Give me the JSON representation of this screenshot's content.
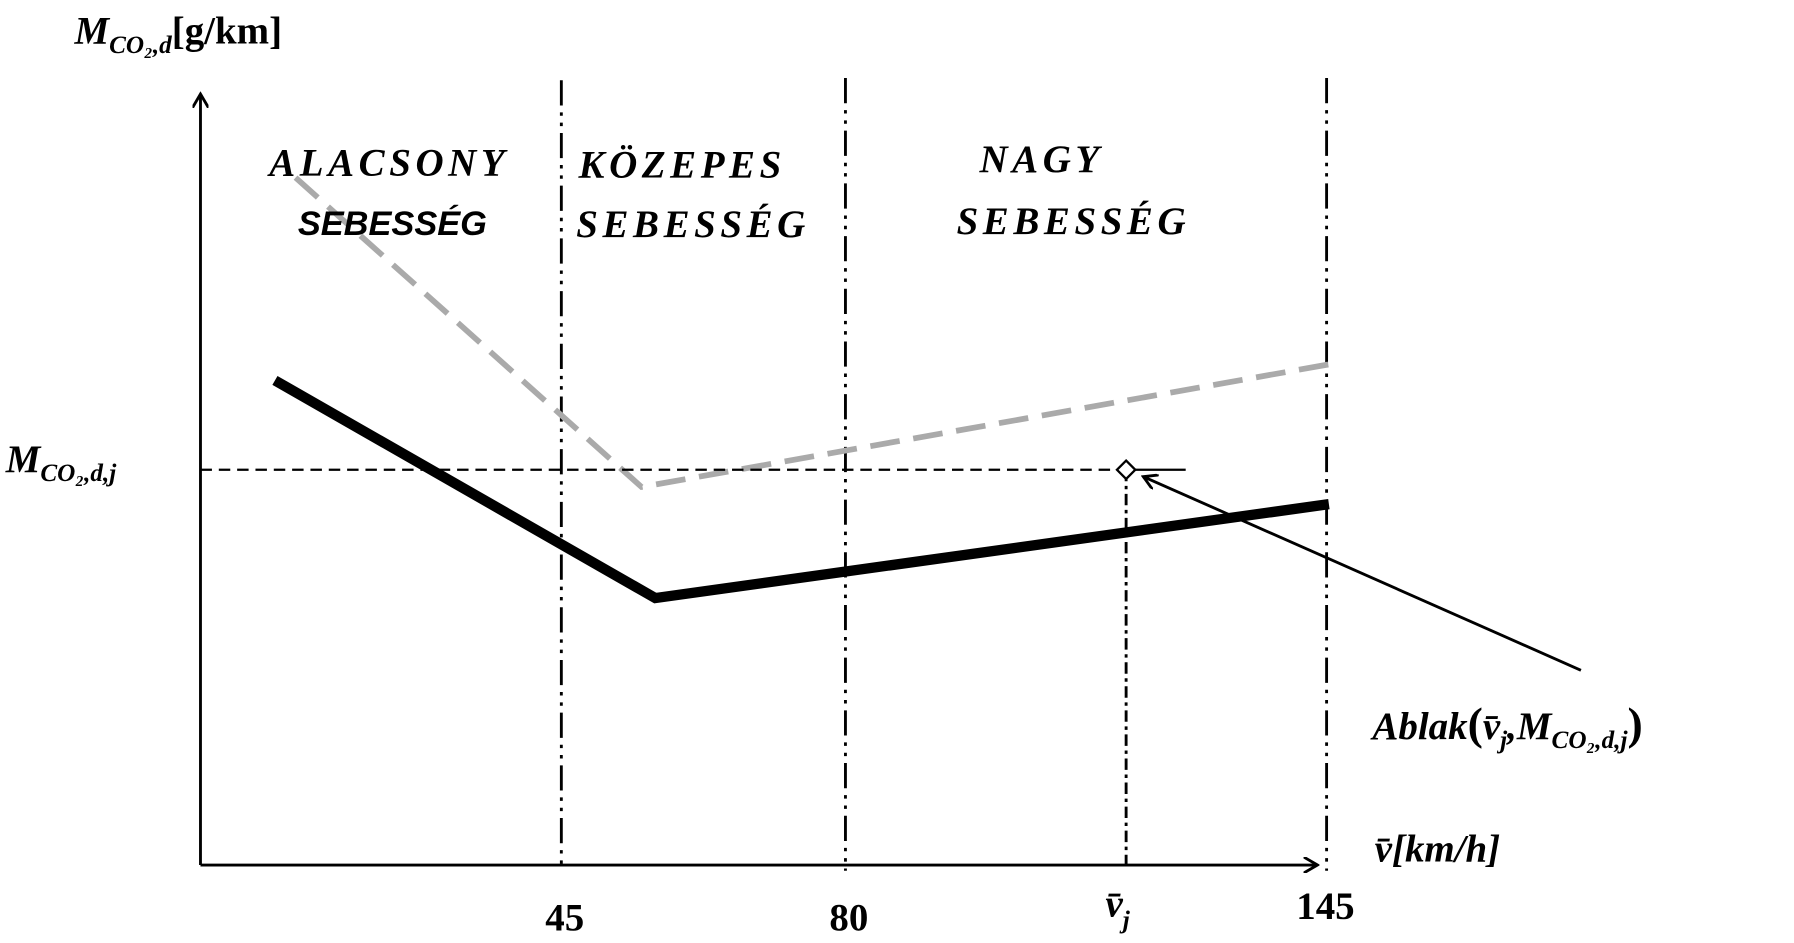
{
  "y_axis_label": {
    "symbol": "M",
    "subscript": "CO₂,d",
    "unit": "[g/km]"
  },
  "y_marker_label": {
    "symbol": "M",
    "subscript": "CO₂,d,j"
  },
  "x_axis_label": {
    "symbol": "v̄",
    "unit": "[km/h]"
  },
  "x_ticks": [
    "45",
    "80",
    "145"
  ],
  "x_marker_label": {
    "symbol": "v̄",
    "subscript": "j"
  },
  "zones": [
    {
      "line1": "ALACSONY",
      "line2": "SEBESSÉG"
    },
    {
      "line1": "KÖZEPES",
      "line2": "SEBESSÉG"
    },
    {
      "line1": "NAGY",
      "line2": "SEBESSÉG"
    }
  ],
  "callout": {
    "name": "Ablak",
    "open": "(",
    "arg1": {
      "symbol": "v̄",
      "subscript": "j"
    },
    "separator": ",",
    "arg2": {
      "symbol": "M",
      "subscript": "CO₂,d,j"
    },
    "close": ")"
  }
}
